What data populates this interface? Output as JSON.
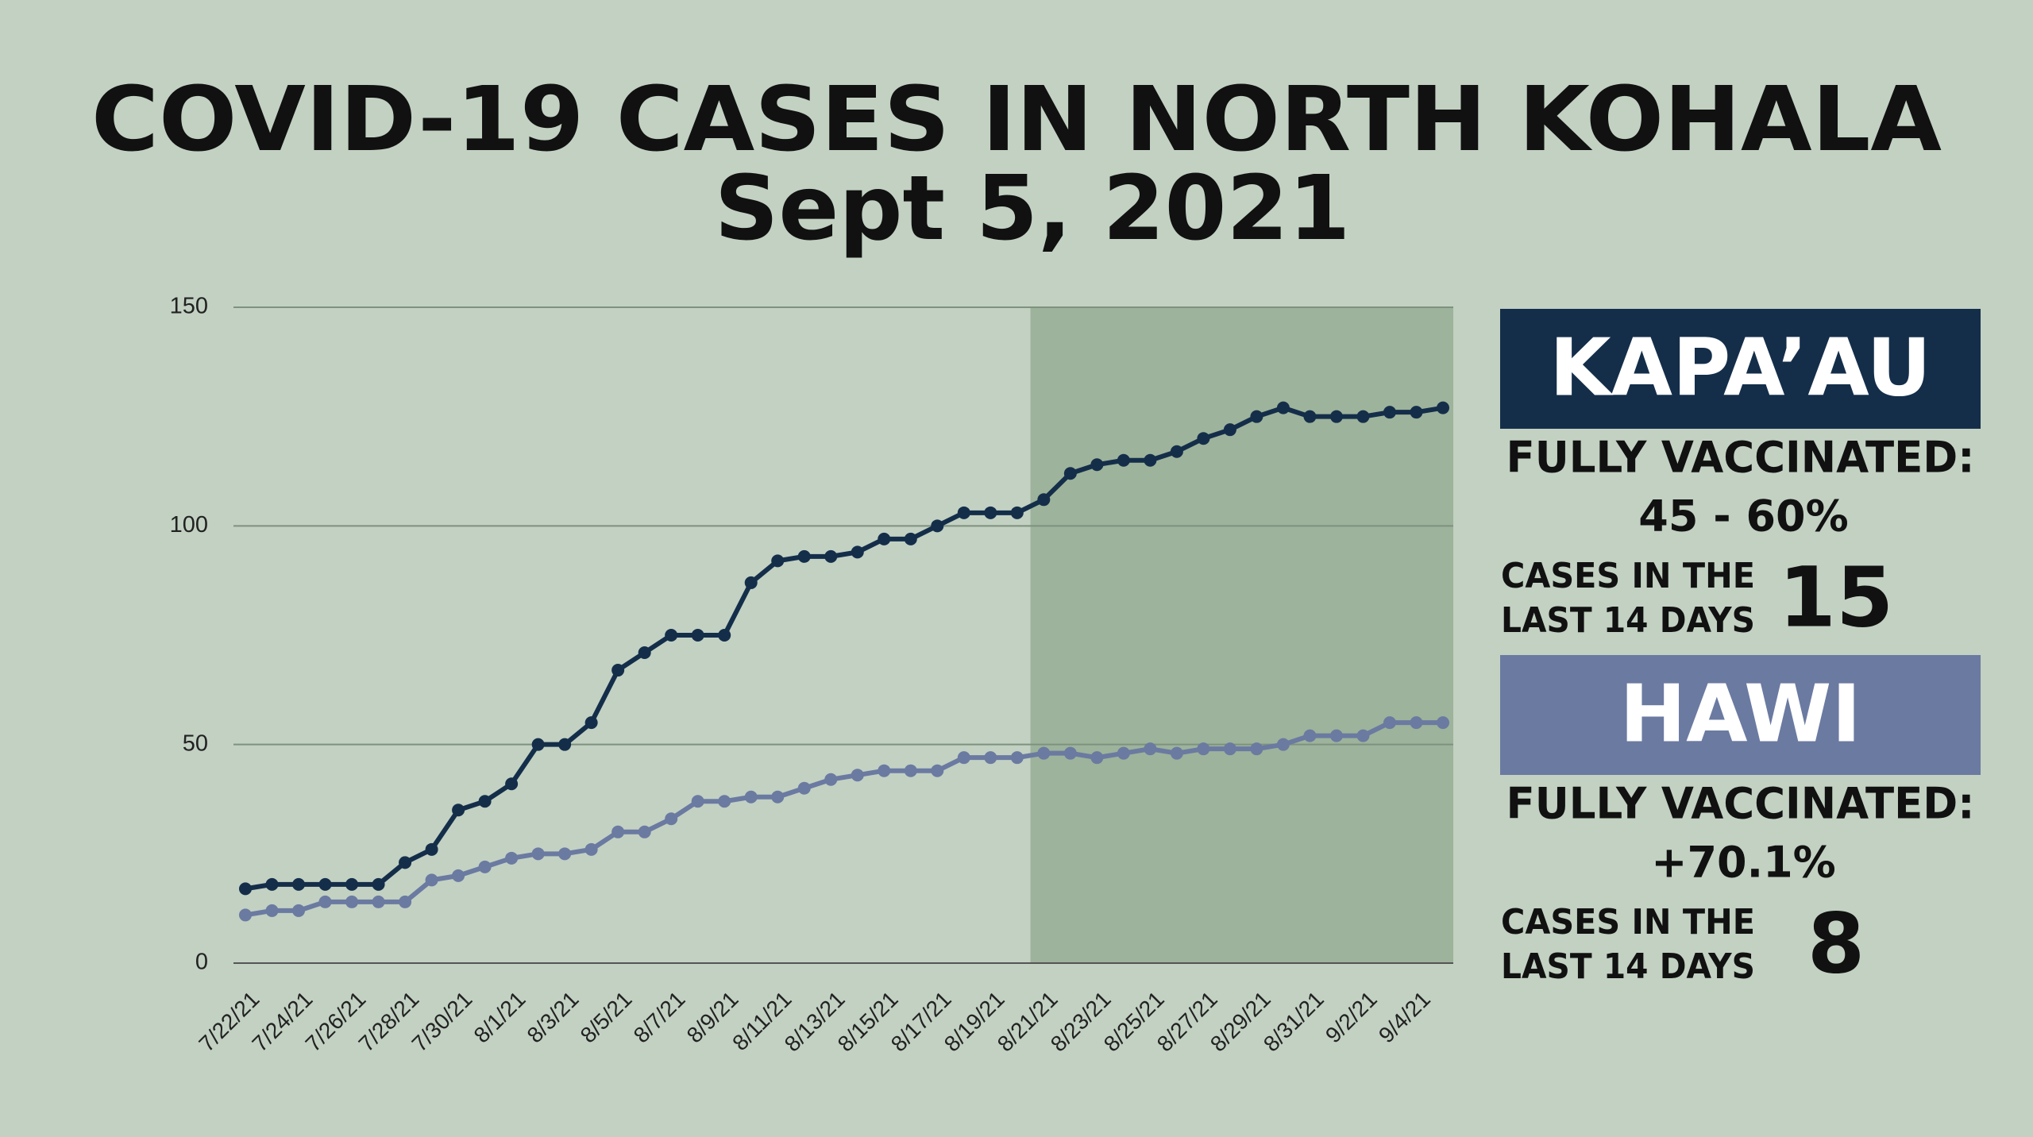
{
  "chart_data": {
    "type": "line",
    "title": "COVID-19 CASES IN NORTH KOHALA",
    "subtitle": "Sept 5, 2021",
    "categories": [
      "7/22/21",
      null,
      "7/24/21",
      null,
      "7/26/21",
      null,
      "7/28/21",
      null,
      "7/30/21",
      null,
      "8/1/21",
      null,
      "8/3/21",
      null,
      "8/5/21",
      null,
      "8/7/21",
      null,
      "8/9/21",
      null,
      "8/11/21",
      null,
      "8/13/21",
      null,
      "8/15/21",
      null,
      "8/17/21",
      null,
      "8/19/21",
      null,
      "8/21/21",
      null,
      "8/23/21",
      null,
      "8/25/21",
      null,
      "8/27/21",
      null,
      "8/29/21",
      null,
      "8/31/21",
      null,
      "9/2/21",
      null,
      "9/4/21",
      null
    ],
    "series": [
      {
        "name": "KAPA’AU",
        "color": "#142e4a",
        "values": [
          17,
          18,
          18,
          18,
          18,
          18,
          23,
          26,
          35,
          37,
          41,
          50,
          50,
          55,
          67,
          71,
          75,
          75,
          75,
          87,
          92,
          93,
          93,
          94,
          97,
          97,
          100,
          103,
          103,
          103,
          106,
          112,
          114,
          115,
          115,
          117,
          120,
          122,
          125,
          127,
          125,
          125,
          125,
          126,
          126,
          127
        ]
      },
      {
        "name": "HAWI",
        "color": "#6b7aa1",
        "values": [
          11,
          12,
          12,
          14,
          14,
          14,
          14,
          19,
          20,
          22,
          24,
          25,
          25,
          26,
          30,
          30,
          33,
          37,
          37,
          38,
          38,
          40,
          42,
          43,
          44,
          44,
          44,
          47,
          47,
          47,
          48,
          48,
          47,
          48,
          49,
          48,
          49,
          49,
          49,
          50,
          52,
          52,
          52,
          55,
          55,
          55
        ]
      }
    ],
    "ylim": [
      0,
      150
    ],
    "yticks": [
      0,
      50,
      100,
      150
    ],
    "grid": true,
    "shaded_from": "8/21/21",
    "shade_color": "#9db39b"
  },
  "panels": [
    {
      "vaccinated_label": "FULLY VACCINATED:",
      "vaccinated_value": "45 - 60%",
      "cases_label_1": "CASES IN THE",
      "cases_label_2": "LAST 14 DAYS",
      "cases": 15
    },
    {
      "vaccinated_label": "FULLY VACCINATED:",
      "vaccinated_value": "+70.1%",
      "cases_label_1": "CASES IN THE",
      "cases_label_2": "LAST 14 DAYS",
      "cases": 8
    }
  ]
}
